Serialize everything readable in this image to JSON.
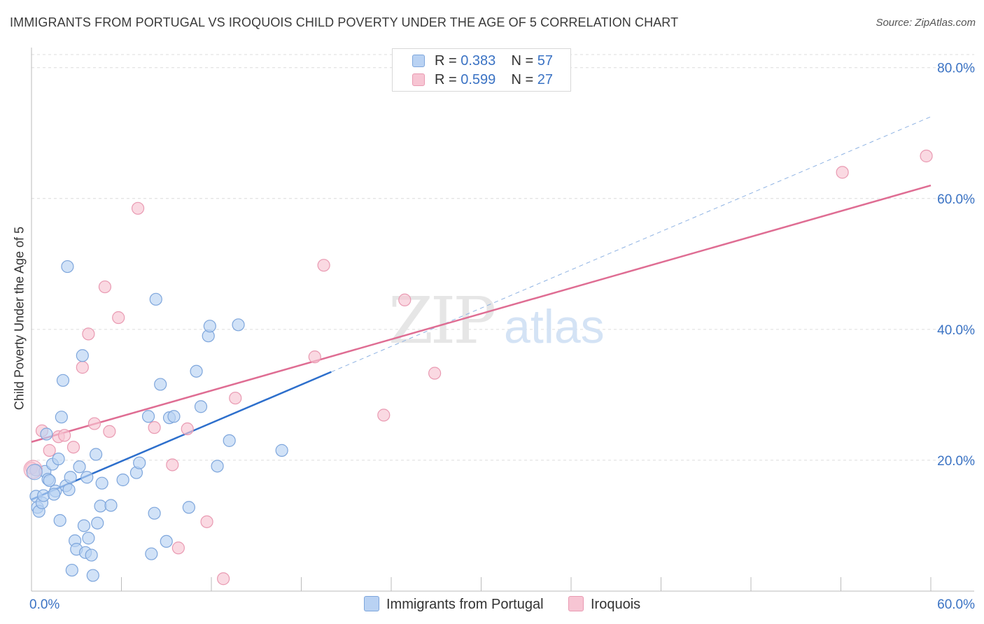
{
  "title": "IMMIGRANTS FROM PORTUGAL VS IROQUOIS CHILD POVERTY UNDER THE AGE OF 5 CORRELATION CHART",
  "source": "Source: ZipAtlas.com",
  "watermark": {
    "zip": "ZIP",
    "atlas": "atlas"
  },
  "legend_top": [
    {
      "r_label": "R =",
      "r_value": "0.383",
      "n_label": "N =",
      "n_value": "57"
    },
    {
      "r_label": "R =",
      "r_value": "0.599",
      "n_label": "N =",
      "n_value": "27"
    }
  ],
  "colors": {
    "blue_fill": "#b9d2f3",
    "blue_stroke": "#7ea6dc",
    "blue_line": "#2d6fcc",
    "pink_fill": "#f7c5d3",
    "pink_stroke": "#e99ab2",
    "pink_line": "#df6d93",
    "axis_tick_text": "#3b73c4",
    "grid": "#dcdcdc"
  },
  "chart_data": {
    "type": "scatter",
    "title": "IMMIGRANTS FROM PORTUGAL VS IROQUOIS CHILD POVERTY UNDER THE AGE OF 5 CORRELATION CHART",
    "xlabel": "",
    "ylabel": "Child Poverty Under the Age of 5",
    "xlim": [
      0,
      60
    ],
    "ylim": [
      0,
      82
    ],
    "x_tick_labels": [
      "0.0%",
      "60.0%"
    ],
    "y_tick_labels": [
      "20.0%",
      "40.0%",
      "60.0%",
      "80.0%"
    ],
    "y_ticks": [
      20,
      40,
      60,
      80
    ],
    "series": [
      {
        "name": "Immigrants from Portugal",
        "r": 0.383,
        "n": 57,
        "trend": {
          "x0": 0,
          "y0": 14.0,
          "x1": 20,
          "y1": 33.5,
          "dashed_to_x": 60,
          "dashed_to_y": 72.5
        },
        "points": [
          [
            0.3,
            18.5
          ],
          [
            0.3,
            14.5
          ],
          [
            0.4,
            12.8
          ],
          [
            0.5,
            12.2
          ],
          [
            0.7,
            13.5
          ],
          [
            0.8,
            14.6
          ],
          [
            0.9,
            18.3
          ],
          [
            1.0,
            24.0
          ],
          [
            1.1,
            17.1
          ],
          [
            1.2,
            16.9
          ],
          [
            1.4,
            19.4
          ],
          [
            1.6,
            15.3
          ],
          [
            1.8,
            20.2
          ],
          [
            1.9,
            10.8
          ],
          [
            2.0,
            26.6
          ],
          [
            2.1,
            32.2
          ],
          [
            2.3,
            16.1
          ],
          [
            2.4,
            49.6
          ],
          [
            2.5,
            15.5
          ],
          [
            2.6,
            17.4
          ],
          [
            2.9,
            7.7
          ],
          [
            3.0,
            6.4
          ],
          [
            3.2,
            19.0
          ],
          [
            3.4,
            36.0
          ],
          [
            3.5,
            10.0
          ],
          [
            3.6,
            5.9
          ],
          [
            3.7,
            17.4
          ],
          [
            3.8,
            8.1
          ],
          [
            4.0,
            5.5
          ],
          [
            4.1,
            2.4
          ],
          [
            4.3,
            20.9
          ],
          [
            4.4,
            10.4
          ],
          [
            4.6,
            13.0
          ],
          [
            4.7,
            16.5
          ],
          [
            5.3,
            13.1
          ],
          [
            6.1,
            17.0
          ],
          [
            7.0,
            18.1
          ],
          [
            7.2,
            19.6
          ],
          [
            7.8,
            26.7
          ],
          [
            8.0,
            5.7
          ],
          [
            8.2,
            11.9
          ],
          [
            8.3,
            44.6
          ],
          [
            8.6,
            31.6
          ],
          [
            9.0,
            7.6
          ],
          [
            9.2,
            26.5
          ],
          [
            9.5,
            26.7
          ],
          [
            10.5,
            12.8
          ],
          [
            11.0,
            33.6
          ],
          [
            11.3,
            28.2
          ],
          [
            11.8,
            39.0
          ],
          [
            11.9,
            40.5
          ],
          [
            12.4,
            19.1
          ],
          [
            13.2,
            23.0
          ],
          [
            13.8,
            40.7
          ],
          [
            16.7,
            21.5
          ],
          [
            2.7,
            3.2
          ],
          [
            1.5,
            14.8
          ]
        ]
      },
      {
        "name": "Iroquois",
        "r": 0.599,
        "n": 27,
        "trend": {
          "x0": 0,
          "y0": 22.8,
          "x1": 60,
          "y1": 62.0
        },
        "points": [
          [
            0.0,
            18.8
          ],
          [
            0.7,
            24.5
          ],
          [
            1.2,
            21.5
          ],
          [
            1.8,
            23.6
          ],
          [
            2.2,
            23.8
          ],
          [
            2.8,
            22.0
          ],
          [
            3.4,
            34.2
          ],
          [
            3.8,
            39.3
          ],
          [
            4.2,
            25.6
          ],
          [
            4.9,
            46.5
          ],
          [
            5.2,
            24.4
          ],
          [
            5.8,
            41.8
          ],
          [
            7.1,
            58.5
          ],
          [
            8.2,
            25.0
          ],
          [
            9.4,
            19.3
          ],
          [
            9.8,
            6.6
          ],
          [
            10.4,
            24.8
          ],
          [
            11.7,
            10.6
          ],
          [
            12.8,
            1.9
          ],
          [
            13.6,
            29.5
          ],
          [
            18.9,
            35.8
          ],
          [
            19.5,
            49.8
          ],
          [
            23.5,
            26.9
          ],
          [
            24.9,
            44.5
          ],
          [
            26.9,
            33.3
          ],
          [
            54.1,
            64.0
          ],
          [
            59.7,
            66.5
          ]
        ]
      }
    ]
  },
  "bottom_legend": [
    "Immigrants from Portugal",
    "Iroquois"
  ]
}
